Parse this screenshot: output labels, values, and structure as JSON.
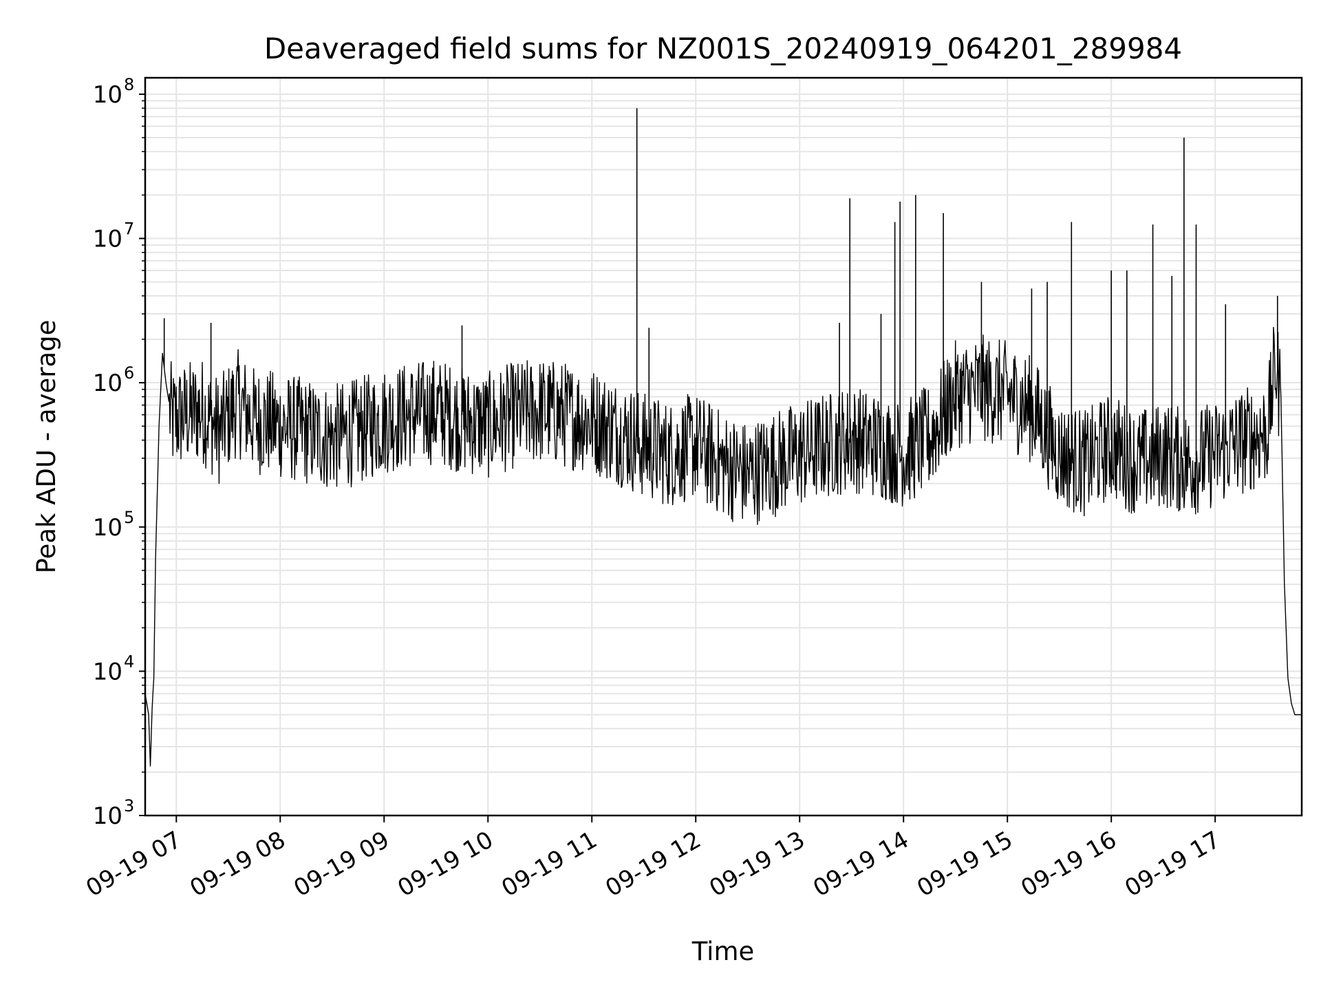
{
  "chart_data": {
    "type": "line",
    "title": "Deaveraged field sums for NZ001S_20240919_064201_289984",
    "xlabel": "Time",
    "ylabel": "Peak ADU - average",
    "yscale": "log",
    "ylim": [
      1000,
      130000000
    ],
    "xlim": [
      "09-19 06:42",
      "09-19 17:50"
    ],
    "grid": true,
    "line_color": "#000000",
    "grid_color": "#e5e5e5",
    "x_tick_labels": [
      "09-19 07",
      "09-19 08",
      "09-19 09",
      "09-19 10",
      "09-19 11",
      "09-19 12",
      "09-19 13",
      "09-19 14",
      "09-19 15",
      "09-19 16",
      "09-19 17"
    ],
    "x_tick_times": [
      "09-19 07:00",
      "09-19 08:00",
      "09-19 09:00",
      "09-19 10:00",
      "09-19 11:00",
      "09-19 12:00",
      "09-19 13:00",
      "09-19 14:00",
      "09-19 15:00",
      "09-19 16:00",
      "09-19 17:00"
    ],
    "y_tick_labels": [
      {
        "base": "10",
        "exp": "3",
        "value": 1000
      },
      {
        "base": "10",
        "exp": "4",
        "value": 10000
      },
      {
        "base": "10",
        "exp": "5",
        "value": 100000
      },
      {
        "base": "10",
        "exp": "6",
        "value": 1000000
      },
      {
        "base": "10",
        "exp": "7",
        "value": 10000000
      },
      {
        "base": "10",
        "exp": "8",
        "value": 100000000
      }
    ],
    "series": [
      {
        "x": [
          "09-19 06:42",
          "09-19 06:44",
          "09-19 06:45",
          "09-19 06:46",
          "09-19 06:47",
          "09-19 06:48",
          "09-19 06:50",
          "09-19 06:52",
          "09-19 06:54",
          "09-19 06:56",
          "09-19 06:58",
          "09-19 07:05",
          "09-19 07:15",
          "09-19 07:25",
          "09-19 07:35",
          "09-19 07:45",
          "09-19 08:00",
          "09-19 08:15",
          "09-19 08:30",
          "09-19 08:45",
          "09-19 09:00",
          "09-19 09:15",
          "09-19 09:30",
          "09-19 09:45",
          "09-19 10:00",
          "09-19 10:15",
          "09-19 10:30",
          "09-19 10:45",
          "09-19 11:00",
          "09-19 11:15",
          "09-19 11:30",
          "09-19 11:45",
          "09-19 12:00",
          "09-19 12:15",
          "09-19 12:30",
          "09-19 12:45",
          "09-19 13:00",
          "09-19 13:15",
          "09-19 13:30",
          "09-19 13:45",
          "09-19 14:00",
          "09-19 14:15",
          "09-19 14:30",
          "09-19 14:45",
          "09-19 15:00",
          "09-19 15:15",
          "09-19 15:30",
          "09-19 15:45",
          "09-19 16:00",
          "09-19 16:15",
          "09-19 16:30",
          "09-19 16:45",
          "09-19 17:00",
          "09-19 17:10",
          "09-19 17:20",
          "09-19 17:30",
          "09-19 17:35",
          "09-19 17:38",
          "09-19 17:40",
          "09-19 17:42",
          "09-19 17:44",
          "09-19 17:46",
          "09-19 17:48",
          "09-19 17:50"
        ],
        "y": [
          7000,
          5000,
          2200,
          5500,
          9000,
          60000,
          500000,
          1600000,
          1000000,
          700000,
          600000,
          650000,
          700000,
          500000,
          800000,
          600000,
          550000,
          500000,
          450000,
          500000,
          600000,
          650000,
          700000,
          600000,
          550000,
          650000,
          700000,
          650000,
          600000,
          500000,
          400000,
          350000,
          400000,
          300000,
          250000,
          300000,
          350000,
          400000,
          450000,
          400000,
          350000,
          450000,
          900000,
          1000000,
          900000,
          700000,
          350000,
          300000,
          400000,
          300000,
          350000,
          300000,
          350000,
          400000,
          450000,
          500000,
          1500000,
          800000,
          40000,
          9000,
          6000,
          5000,
          5000,
          5000
        ]
      }
    ],
    "spikes": [
      {
        "x": "09-19 06:53",
        "y": 2800000
      },
      {
        "x": "09-19 07:20",
        "y": 2600000
      },
      {
        "x": "09-19 09:45",
        "y": 2500000
      },
      {
        "x": "09-19 11:26",
        "y": 80000000
      },
      {
        "x": "09-19 11:33",
        "y": 2400000
      },
      {
        "x": "09-19 13:23",
        "y": 2600000
      },
      {
        "x": "09-19 13:29",
        "y": 19000000
      },
      {
        "x": "09-19 13:47",
        "y": 3000000
      },
      {
        "x": "09-19 13:55",
        "y": 13000000
      },
      {
        "x": "09-19 13:58",
        "y": 18000000
      },
      {
        "x": "09-19 14:07",
        "y": 20000000
      },
      {
        "x": "09-19 14:23",
        "y": 15000000
      },
      {
        "x": "09-19 14:45",
        "y": 5000000
      },
      {
        "x": "09-19 15:14",
        "y": 4500000
      },
      {
        "x": "09-19 15:23",
        "y": 5000000
      },
      {
        "x": "09-19 15:37",
        "y": 13000000
      },
      {
        "x": "09-19 16:00",
        "y": 6000000
      },
      {
        "x": "09-19 16:09",
        "y": 6000000
      },
      {
        "x": "09-19 16:24",
        "y": 12500000
      },
      {
        "x": "09-19 16:35",
        "y": 5500000
      },
      {
        "x": "09-19 16:42",
        "y": 50000000
      },
      {
        "x": "09-19 16:49",
        "y": 12500000
      },
      {
        "x": "09-19 17:06",
        "y": 3500000
      },
      {
        "x": "09-19 17:36",
        "y": 4000000
      }
    ]
  }
}
